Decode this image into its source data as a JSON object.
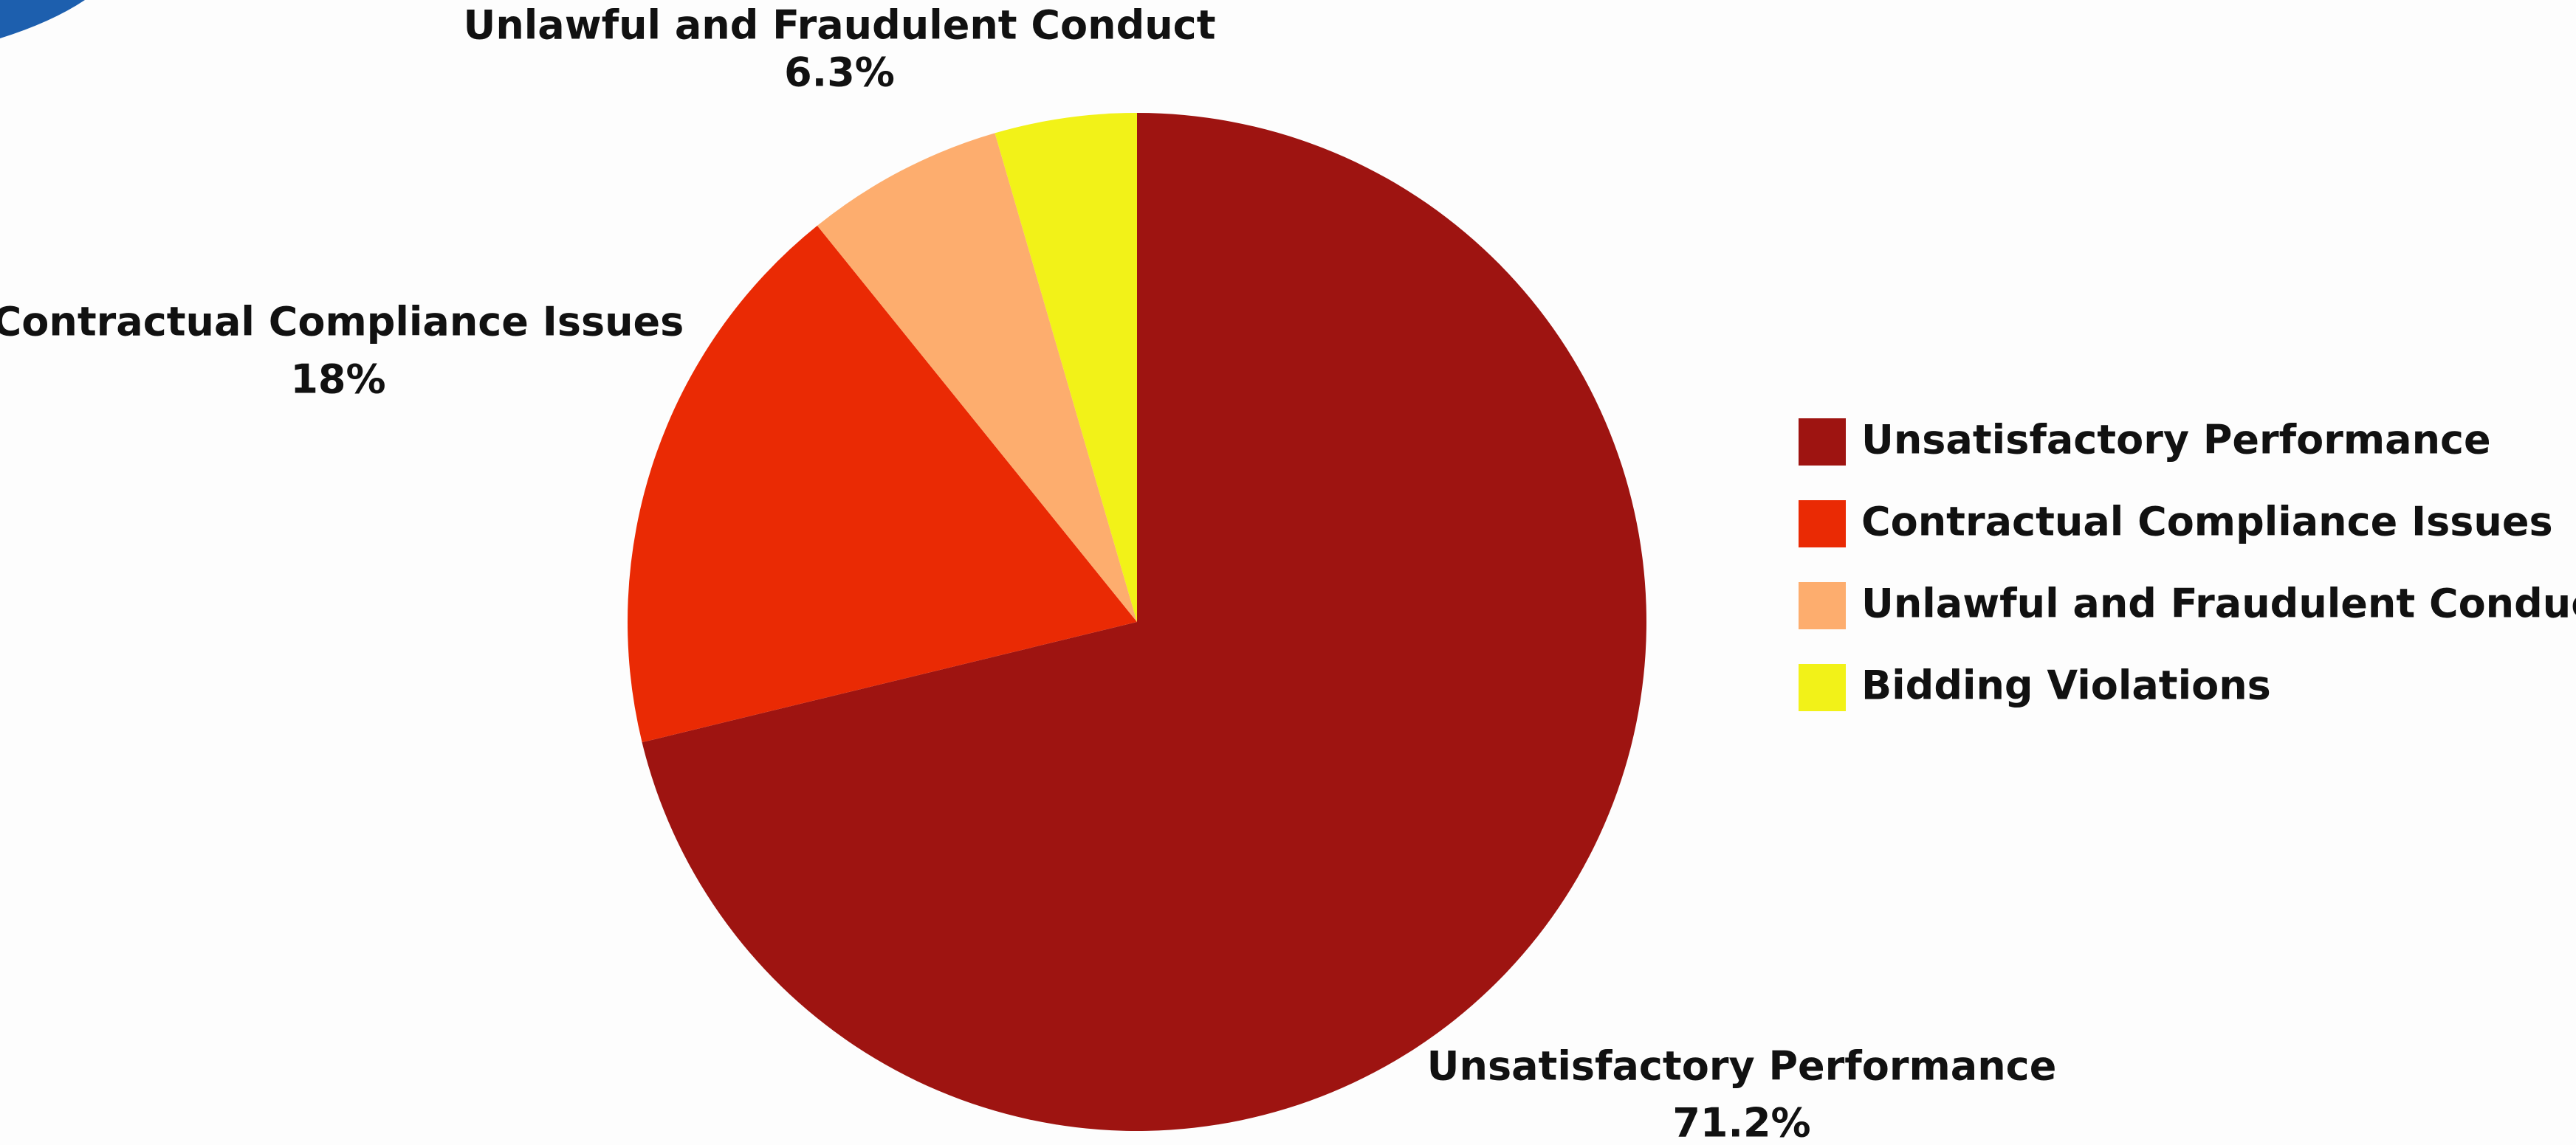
{
  "chart_data": {
    "type": "pie",
    "categories": [
      "Unsatisfactory Performance",
      "Contractual Compliance Issues",
      "Unlawful and Fraudulent Conduct",
      "Bidding Violations"
    ],
    "values": [
      71.2,
      18,
      6.3,
      4.5
    ],
    "value_labels": [
      "71.2%",
      "18%",
      "6.3%",
      null
    ],
    "colors": [
      "#9e1411",
      "#ea2a04",
      "#fdad6e",
      "#f2f218"
    ],
    "legend": "right"
  }
}
